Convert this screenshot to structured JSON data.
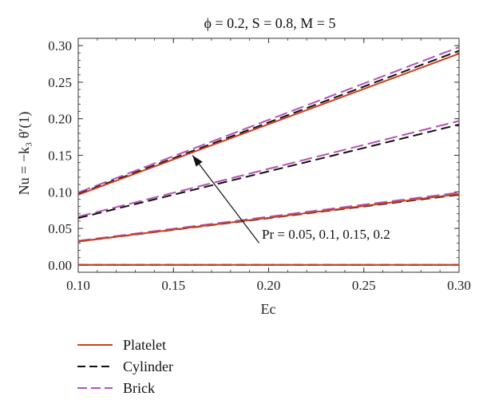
{
  "chart_data": {
    "type": "line",
    "title": "ϕ = 0.2, S = 0.8, M = 5",
    "xlabel": "Ec",
    "ylabel": "Nu = −k₃ θ′(1)",
    "xlim": [
      0.1,
      0.3
    ],
    "ylim": [
      -0.01,
      0.31
    ],
    "xticks": [
      "0.10",
      "0.15",
      "0.20",
      "0.25",
      "0.30"
    ],
    "yticks": [
      "0.00",
      "0.05",
      "0.10",
      "0.15",
      "0.20",
      "0.25",
      "0.30"
    ],
    "xtick_values": [
      0.1,
      0.15,
      0.2,
      0.25,
      0.3
    ],
    "ytick_values": [
      0.0,
      0.05,
      0.1,
      0.15,
      0.2,
      0.25,
      0.3
    ],
    "grid": false,
    "legend_position": "bottom-left, below plot",
    "annotation": "Pr = 0.05, 0.1, 0.15, 0.2",
    "colors": {
      "Platelet": "#c8401f",
      "Cylinder": "#111111",
      "Brick": "#b552b5"
    },
    "series": [
      {
        "name": "Platelet",
        "x": [
          0.1,
          0.3
        ],
        "values": [
          0.0,
          0.0
        ],
        "pr": 0.05
      },
      {
        "name": "Cylinder",
        "x": [
          0.1,
          0.3
        ],
        "values": [
          0.0,
          0.0
        ],
        "pr": 0.05
      },
      {
        "name": "Brick",
        "x": [
          0.1,
          0.3
        ],
        "values": [
          0.0,
          0.0
        ],
        "pr": 0.05
      },
      {
        "name": "Platelet",
        "x": [
          0.1,
          0.3
        ],
        "values": [
          0.032,
          0.097
        ],
        "pr": 0.1
      },
      {
        "name": "Cylinder",
        "x": [
          0.1,
          0.3
        ],
        "values": [
          0.032,
          0.096
        ],
        "pr": 0.1
      },
      {
        "name": "Brick",
        "x": [
          0.1,
          0.3
        ],
        "values": [
          0.033,
          0.099
        ],
        "pr": 0.1
      },
      {
        "name": "Cylinder",
        "x": [
          0.1,
          0.3
        ],
        "values": [
          0.064,
          0.192
        ],
        "pr": 0.15
      },
      {
        "name": "Brick",
        "x": [
          0.1,
          0.3
        ],
        "values": [
          0.066,
          0.197
        ],
        "pr": 0.15
      },
      {
        "name": "Platelet",
        "x": [
          0.1,
          0.3
        ],
        "values": [
          0.096,
          0.289
        ],
        "pr": 0.2
      },
      {
        "name": "Cylinder",
        "x": [
          0.1,
          0.3
        ],
        "values": [
          0.097,
          0.293
        ],
        "pr": 0.2
      },
      {
        "name": "Brick",
        "x": [
          0.1,
          0.3
        ],
        "values": [
          0.099,
          0.298
        ],
        "pr": 0.2
      }
    ],
    "legend": [
      {
        "name": "Platelet",
        "style": "solid"
      },
      {
        "name": "Cylinder",
        "style": "dashed"
      },
      {
        "name": "Brick",
        "style": "dashed"
      }
    ]
  }
}
